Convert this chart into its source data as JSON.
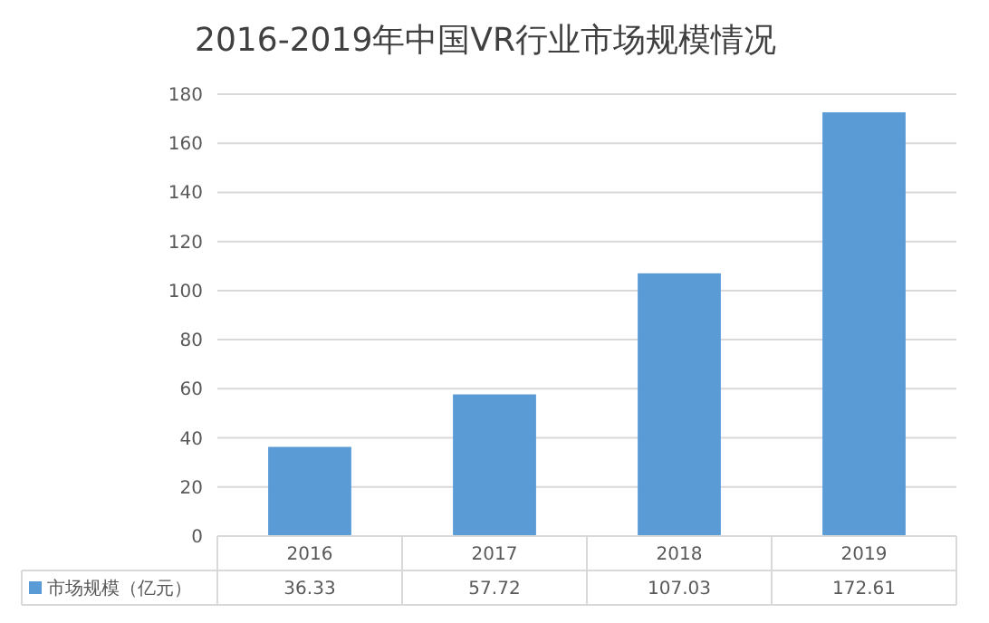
{
  "chart_data": {
    "type": "bar",
    "title": "2016-2019年中国VR行业市场规模情况",
    "categories": [
      "2016",
      "2017",
      "2018",
      "2019"
    ],
    "series": [
      {
        "name": "市场规模（亿元）",
        "color": "#5b9bd5",
        "values": [
          36.33,
          57.72,
          107.03,
          172.61
        ]
      }
    ],
    "ylim": [
      0,
      180
    ],
    "yticks": [
      0,
      20,
      40,
      60,
      80,
      100,
      120,
      140,
      160,
      180
    ],
    "grid": "y",
    "data_labels": true,
    "legend": "bottom"
  }
}
